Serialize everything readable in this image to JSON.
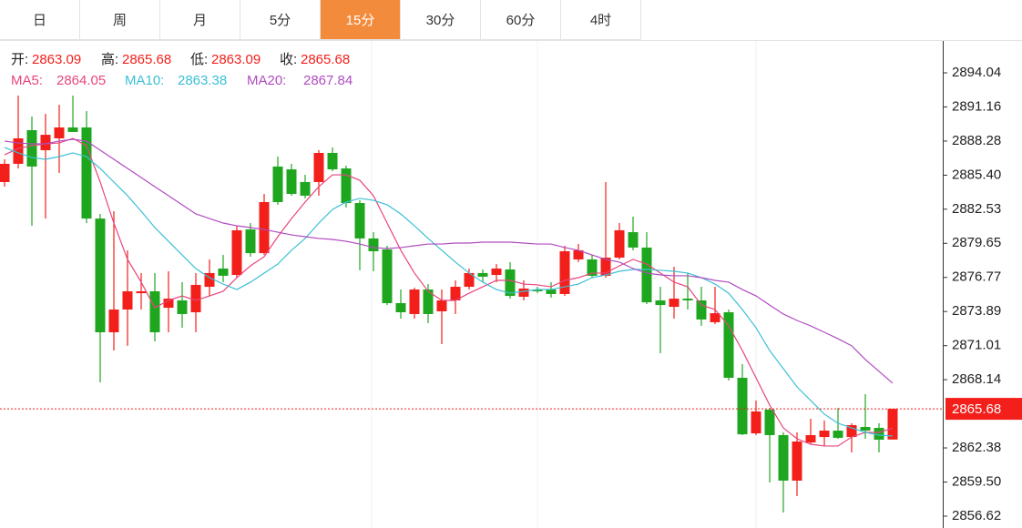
{
  "tabs": [
    "日",
    "周",
    "月",
    "5分",
    "15分",
    "30分",
    "60分",
    "4时"
  ],
  "active_tab": 4,
  "chart_data": {
    "type": "candlestick",
    "ylim": [
      2855.62,
      2896.73
    ],
    "yticks": [
      2894.04,
      2891.16,
      2888.28,
      {
        "value": 2885.4,
        "label": "2885.40"
      },
      2882.53,
      2879.65,
      2876.77,
      2873.89,
      2871.01,
      2868.14,
      2862.38,
      {
        "value": 2859.5,
        "label": "2859.50"
      },
      2856.62
    ],
    "up_color": "#f21f1a",
    "down_color": "#1fa61f",
    "ohlc_labels": [
      "开:",
      "高:",
      "低:",
      "收:"
    ],
    "candles": {
      "open": [
        2884.82,
        2886.36,
        2889.2,
        2887.51,
        2888.51,
        2889.43,
        2889.43,
        2881.74,
        2872.14,
        2874.06,
        2875.44,
        2875.6,
        2874.21,
        2874.83,
        2873.83,
        2875.98,
        2877.52,
        2876.98,
        2880.82,
        2878.82,
        2886.13,
        2885.89,
        2884.82,
        2884.82,
        2887.28,
        2885.97,
        2883.05,
        2880.06,
        2879.13,
        2874.6,
        2873.68,
        2875.75,
        2873.91,
        2874.83,
        2875.98,
        2877.14,
        2876.98,
        2877.44,
        2875.14,
        2875.75,
        2875.75,
        2875.37,
        2878.29,
        2878.29,
        2876.91,
        2878.44,
        2880.59,
        2879.29,
        2874.83,
        2874.29,
        2874.98,
        2874.83,
        2872.99,
        2873.83,
        2868.3,
        2863.61,
        2865.61,
        2863.46,
        2859.62,
        2862.84,
        2863.3,
        2863.84,
        2863.3,
        2864.15,
        2864.07,
        2863.09
      ],
      "high": [
        2886.74,
        2892.12,
        2890.35,
        2890.58,
        2891.35,
        2892.12,
        2890.81,
        2882.13,
        2882.36,
        2879.06,
        2877.14,
        2877.14,
        2877.29,
        2876.37,
        2877.14,
        2878.29,
        2878.67,
        2881.13,
        2881.36,
        2883.82,
        2886.97,
        2886.36,
        2885.43,
        2887.51,
        2887.74,
        2886.2,
        2883.28,
        2880.59,
        2879.44,
        2875.75,
        2875.91,
        2876.21,
        2875.75,
        2876.52,
        2877.52,
        2877.44,
        2877.9,
        2878.06,
        2876.52,
        2875.98,
        2876.37,
        2879.44,
        2879.59,
        2878.67,
        2884.82,
        2881.36,
        2881.9,
        2880.59,
        2875.98,
        2877.67,
        2877.14,
        2875.98,
        2875.98,
        2874.06,
        2869.45,
        2866.38,
        2865.76,
        2863.69,
        2863.69,
        2864.84,
        2864.69,
        2865.76,
        2864.46,
        2866.92,
        2864.46,
        2865.68
      ],
      "low": [
        2884.43,
        2885.97,
        2881.13,
        2881.74,
        2885.59,
        2889.05,
        2881.36,
        2867.91,
        2870.6,
        2871.0,
        2874.06,
        2871.37,
        2872.14,
        2872.52,
        2872.14,
        2875.21,
        2876.37,
        2876.75,
        2878.52,
        2878.67,
        2882.9,
        2883.67,
        2883.44,
        2883.67,
        2885.74,
        2882.67,
        2877.37,
        2877.29,
        2874.44,
        2873.29,
        2873.29,
        2872.91,
        2871.14,
        2873.68,
        2875.75,
        2876.37,
        2876.37,
        2874.98,
        2874.83,
        2875.44,
        2875.06,
        2875.21,
        2878.06,
        2876.75,
        2876.75,
        2878.29,
        2879.06,
        2874.52,
        2870.37,
        2873.29,
        2874.06,
        2872.68,
        2872.83,
        2868.07,
        2863.46,
        2863.46,
        2859.46,
        2856.93,
        2858.31,
        2862.69,
        2862.54,
        2863.15,
        2862.0,
        2863.15,
        2862.0,
        2863.09
      ],
      "close": [
        2886.36,
        2888.51,
        2886.13,
        2888.81,
        2889.43,
        2889.05,
        2881.74,
        2872.14,
        2874.06,
        2875.6,
        2875.6,
        2872.14,
        2874.98,
        2873.68,
        2876.14,
        2877.14,
        2876.91,
        2880.75,
        2878.82,
        2883.13,
        2883.13,
        2883.82,
        2883.67,
        2887.28,
        2885.89,
        2883.05,
        2880.06,
        2878.98,
        2874.6,
        2873.83,
        2875.75,
        2873.68,
        2874.83,
        2875.98,
        2877.14,
        2876.83,
        2877.52,
        2875.21,
        2875.83,
        2875.6,
        2875.37,
        2878.98,
        2879.06,
        2876.91,
        2878.44,
        2880.75,
        2879.29,
        2874.67,
        2874.44,
        2874.98,
        2874.83,
        2873.22,
        2873.75,
        2868.3,
        2863.53,
        2865.46,
        2863.46,
        2859.62,
        2862.92,
        2863.46,
        2863.84,
        2863.23,
        2864.3,
        2863.84,
        2863.07,
        2865.68
      ]
    },
    "series": [
      {
        "name": "MA5:",
        "color": "#e8457e",
        "values": [
          2887.12,
          2887.66,
          2887.89,
          2888.05,
          2888.12,
          2888.51,
          2887.89,
          2884.82,
          2881.36,
          2878.29,
          2876.37,
          2874.21,
          2874.83,
          2875.21,
          2874.83,
          2875.21,
          2875.6,
          2876.75,
          2877.75,
          2878.52,
          2880.21,
          2881.74,
          2883.13,
          2884.43,
          2885.43,
          2885.43,
          2884.97,
          2883.67,
          2881.36,
          2879.06,
          2877.14,
          2875.6,
          2874.83,
          2874.83,
          2875.44,
          2875.98,
          2876.52,
          2876.52,
          2876.21,
          2876.14,
          2875.98,
          2876.52,
          2876.75,
          2877.14,
          2877.14,
          2877.75,
          2878.29,
          2877.9,
          2877.14,
          2876.37,
          2875.98,
          2874.44,
          2874.06,
          2872.68,
          2870.6,
          2868.3,
          2865.99,
          2864.07,
          2863.15,
          2862.69,
          2862.54,
          2862.54,
          2863.3,
          2863.69,
          2863.69,
          2864.05
        ]
      },
      {
        "name": "MA10:",
        "color": "#3cbfd6",
        "values": [
          2887.74,
          2887.28,
          2886.89,
          2886.74,
          2886.97,
          2887.28,
          2886.97,
          2885.97,
          2884.82,
          2883.67,
          2882.36,
          2880.98,
          2879.82,
          2878.67,
          2877.52,
          2876.75,
          2876.21,
          2875.75,
          2876.37,
          2877.14,
          2877.9,
          2879.06,
          2880.06,
          2881.36,
          2882.51,
          2883.13,
          2883.44,
          2883.28,
          2882.9,
          2882.13,
          2881.13,
          2880.06,
          2879.06,
          2878.06,
          2877.14,
          2876.37,
          2875.75,
          2875.44,
          2875.6,
          2875.75,
          2875.75,
          2875.98,
          2876.21,
          2876.75,
          2876.98,
          2877.29,
          2877.44,
          2877.44,
          2877.37,
          2877.29,
          2877.14,
          2876.75,
          2876.21,
          2875.44,
          2874.06,
          2872.52,
          2870.6,
          2869.07,
          2867.53,
          2866.38,
          2865.23,
          2864.46,
          2864.07,
          2863.69,
          2863.46,
          2863.38
        ]
      },
      {
        "name": "MA20:",
        "color": "#b04cc0",
        "values": [
          2888.28,
          2888.12,
          2888.05,
          2888.05,
          2888.28,
          2888.43,
          2888.28,
          2887.51,
          2886.74,
          2885.97,
          2885.2,
          2884.43,
          2883.67,
          2882.9,
          2882.13,
          2881.74,
          2881.36,
          2881.13,
          2880.98,
          2880.82,
          2880.59,
          2880.36,
          2880.21,
          2880.06,
          2879.98,
          2879.82,
          2879.59,
          2879.29,
          2879.21,
          2879.29,
          2879.44,
          2879.59,
          2879.59,
          2879.67,
          2879.67,
          2879.75,
          2879.75,
          2879.75,
          2879.67,
          2879.59,
          2879.59,
          2879.29,
          2879.06,
          2878.67,
          2878.29,
          2878.06,
          2877.52,
          2877.14,
          2876.98,
          2876.91,
          2876.91,
          2876.75,
          2876.52,
          2876.37,
          2875.75,
          2875.21,
          2874.44,
          2873.68,
          2873.14,
          2872.68,
          2872.14,
          2871.6,
          2871.0,
          2869.84,
          2868.84,
          2867.84
        ]
      }
    ]
  }
}
